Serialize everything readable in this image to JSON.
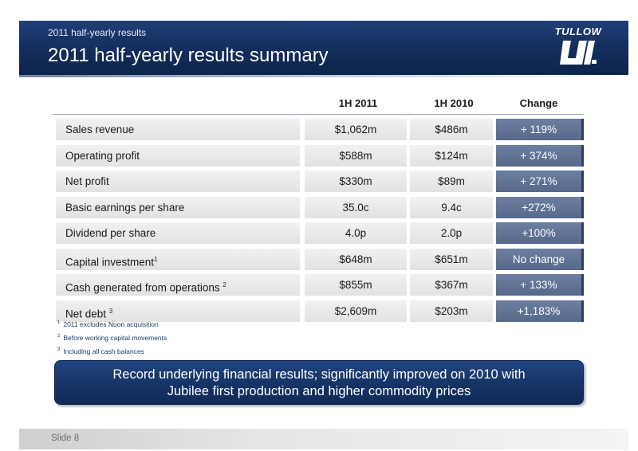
{
  "header": {
    "subtitle": "2011 half-yearly results",
    "title": "2011 half-yearly results summary",
    "logo_text": "TULLOW"
  },
  "table": {
    "columns": [
      "1H 2011",
      "1H 2010",
      "Change"
    ],
    "rows": [
      {
        "label": "Sales revenue",
        "sup": "",
        "v2011": "$1,062m",
        "v2010": "$486m",
        "change": "+ 119%"
      },
      {
        "label": "Operating profit",
        "sup": "",
        "v2011": "$588m",
        "v2010": "$124m",
        "change": "+ 374%"
      },
      {
        "label": "Net profit",
        "sup": "",
        "v2011": "$330m",
        "v2010": "$89m",
        "change": "+ 271%"
      },
      {
        "label": "Basic earnings per share",
        "sup": "",
        "v2011": "35.0c",
        "v2010": "9.4c",
        "change": "+272%"
      },
      {
        "label": "Dividend per share",
        "sup": "",
        "v2011": "4.0p",
        "v2010": "2.0p",
        "change": "+100%"
      },
      {
        "label": "Capital investment",
        "sup": "1",
        "v2011": "$648m",
        "v2010": "$651m",
        "change": "No change"
      },
      {
        "label": "Cash generated from operations ",
        "sup": "2",
        "v2011": "$855m",
        "v2010": "$367m",
        "change": "+ 133%"
      },
      {
        "label": "Net debt ",
        "sup": "3",
        "v2011": "$2,609m",
        "v2010": "$203m",
        "change": "+1,183%"
      }
    ]
  },
  "footnotes": [
    {
      "num": "1",
      "text": "2011 excludes Nuon acquisition"
    },
    {
      "num": "2",
      "text": "Before working capital movements"
    },
    {
      "num": "3",
      "text": "Including all cash balances"
    }
  ],
  "banner": {
    "line1": "Record underlying financial results; significantly improved on 2010 with",
    "line2": "Jubilee first  production and  higher  commodity prices"
  },
  "footer": {
    "slide_label": "Slide 8"
  },
  "colors": {
    "header_navy": "#132d5c",
    "change_column": "#5f7294",
    "footnote_blue": "#1a3a6e"
  }
}
